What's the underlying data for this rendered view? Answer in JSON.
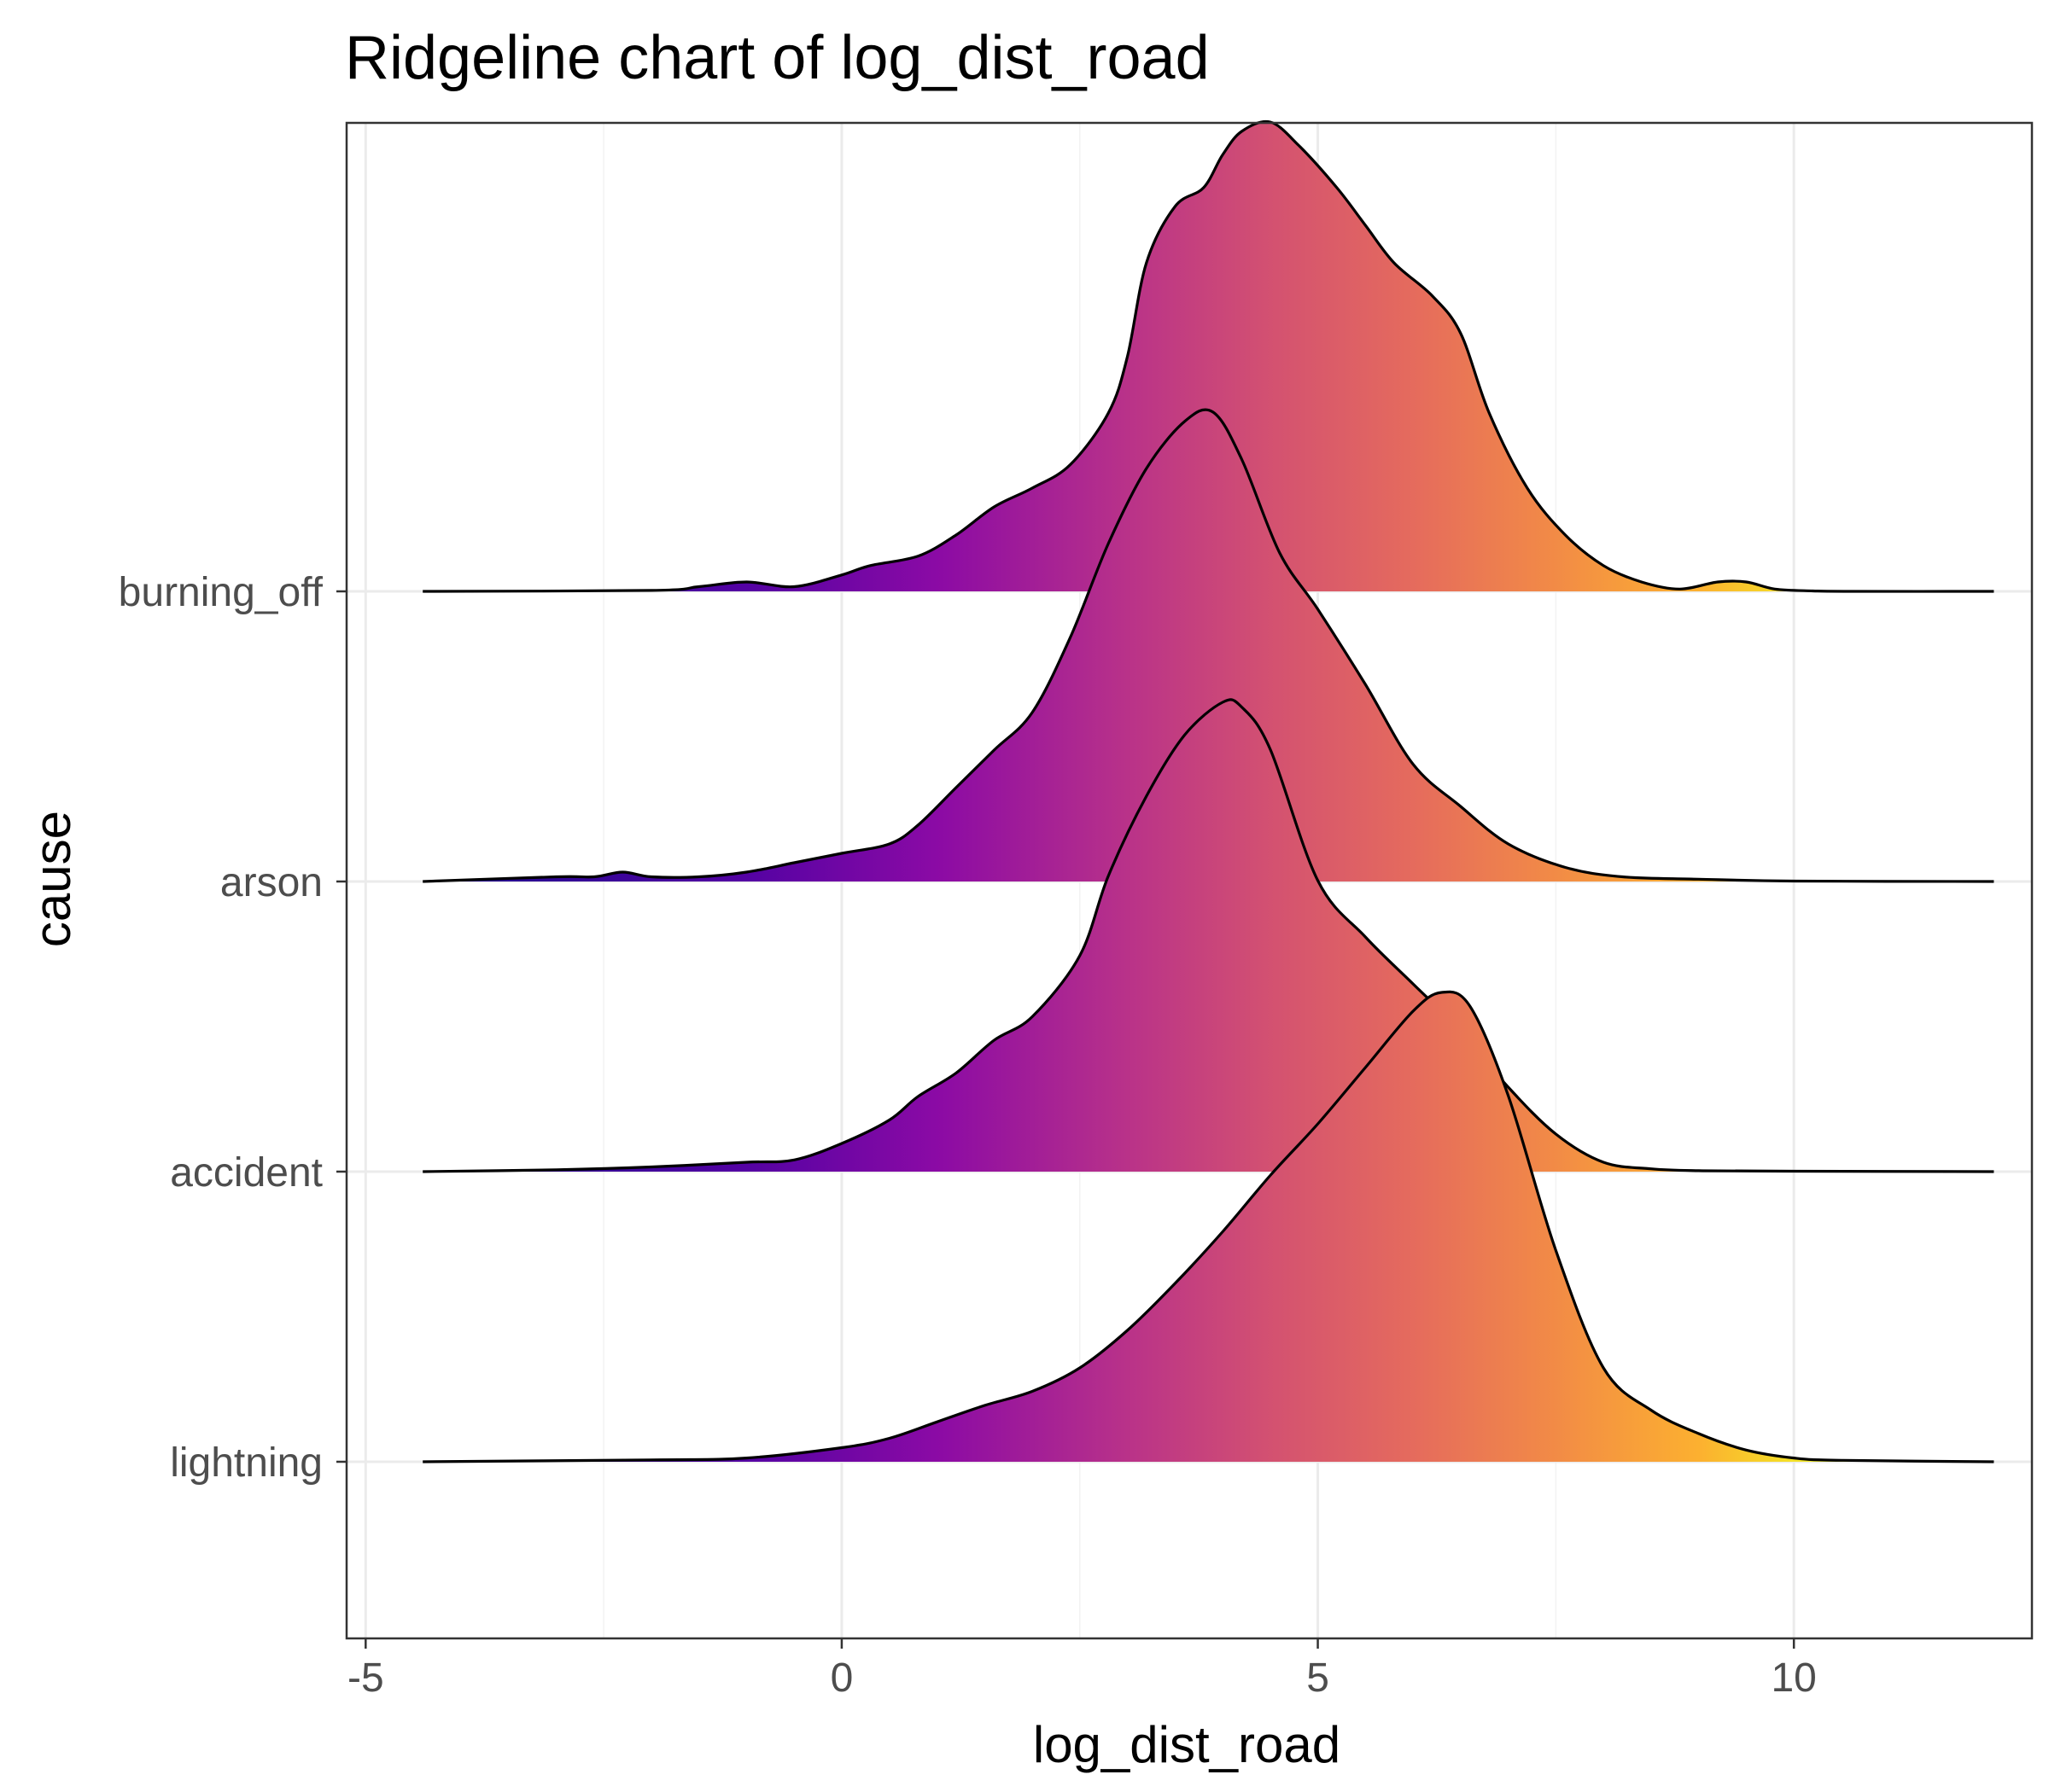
{
  "chart_data": {
    "type": "ridgeline",
    "title": "Ridgeline chart of log_dist_road",
    "xlabel": "log_dist_road",
    "ylabel": "cause",
    "xlim": [
      -5.2,
      12.5
    ],
    "x_ticks": [
      -5,
      0,
      5,
      10
    ],
    "x_tick_labels": [
      "-5",
      "0",
      "5",
      "10"
    ],
    "categories": [
      "burning_off",
      "arson",
      "accident",
      "lightning"
    ],
    "fill_gradient": {
      "by": "x",
      "stops": [
        {
          "x": -5,
          "color": "#0d0887"
        },
        {
          "x": -1,
          "color": "#5402a3"
        },
        {
          "x": 1,
          "color": "#8b0aa5"
        },
        {
          "x": 3,
          "color": "#b93289"
        },
        {
          "x": 4.5,
          "color": "#d35171"
        },
        {
          "x": 6,
          "color": "#e56b5d"
        },
        {
          "x": 7.5,
          "color": "#f28b46"
        },
        {
          "x": 9,
          "color": "#fcb030"
        },
        {
          "x": 10.5,
          "color": "#f0f921"
        }
      ]
    },
    "grid": true,
    "series": [
      {
        "name": "burning_off",
        "x": [
          -4.4,
          -2,
          -1.5,
          -1,
          -0.5,
          0,
          0.3,
          0.8,
          1.2,
          1.6,
          2,
          2.4,
          2.8,
          3,
          3.2,
          3.5,
          3.8,
          4,
          4.2,
          4.5,
          4.8,
          5.2,
          5.5,
          5.8,
          6.2,
          6.5,
          6.8,
          7.2,
          7.6,
          8,
          8.4,
          8.8,
          9.2,
          9.5,
          9.8,
          10.2,
          10.6,
          12.1
        ],
        "y": [
          0,
          0.002,
          0.01,
          0.02,
          0.01,
          0.035,
          0.055,
          0.075,
          0.12,
          0.18,
          0.22,
          0.27,
          0.38,
          0.5,
          0.7,
          0.82,
          0.86,
          0.93,
          0.98,
          1.0,
          0.95,
          0.86,
          0.78,
          0.7,
          0.63,
          0.55,
          0.38,
          0.22,
          0.12,
          0.055,
          0.02,
          0.005,
          0.02,
          0.02,
          0.005,
          0.001,
          0,
          0
        ]
      },
      {
        "name": "arson",
        "x": [
          -4.4,
          -3,
          -2.6,
          -2.3,
          -2,
          -1.5,
          -1,
          -0.5,
          0,
          0.5,
          0.8,
          1.2,
          1.6,
          2,
          2.4,
          2.8,
          3.2,
          3.6,
          3.9,
          4.2,
          4.6,
          5,
          5.5,
          6,
          6.5,
          7,
          7.6,
          8.2,
          9,
          10,
          12.1
        ],
        "y": [
          0,
          0.01,
          0.01,
          0.02,
          0.01,
          0.01,
          0.02,
          0.04,
          0.06,
          0.08,
          0.12,
          0.2,
          0.28,
          0.36,
          0.52,
          0.72,
          0.88,
          0.98,
          1.0,
          0.9,
          0.7,
          0.58,
          0.42,
          0.25,
          0.16,
          0.08,
          0.03,
          0.01,
          0.005,
          0.001,
          0
        ]
      },
      {
        "name": "accident",
        "x": [
          -4.4,
          -3,
          -2,
          -1,
          -0.5,
          0,
          0.5,
          0.8,
          1.2,
          1.6,
          2,
          2.5,
          2.8,
          3.2,
          3.6,
          4,
          4.2,
          4.5,
          5,
          5.5,
          6,
          6.5,
          7,
          7.5,
          8,
          8.5,
          9,
          10,
          12.1
        ],
        "y": [
          0,
          0.004,
          0.01,
          0.02,
          0.025,
          0.06,
          0.11,
          0.16,
          0.21,
          0.28,
          0.33,
          0.46,
          0.63,
          0.8,
          0.93,
          1.0,
          0.99,
          0.9,
          0.62,
          0.5,
          0.4,
          0.3,
          0.18,
          0.08,
          0.02,
          0.006,
          0.002,
          0.001,
          0
        ]
      },
      {
        "name": "lightning",
        "x": [
          -4.4,
          -2,
          -1,
          0,
          0.5,
          1,
          1.5,
          2,
          2.5,
          3,
          3.5,
          4,
          4.5,
          5,
          5.5,
          6,
          6.3,
          6.6,
          7,
          7.5,
          8,
          8.5,
          9,
          9.5,
          10,
          10.5,
          12.1
        ],
        "y": [
          0,
          0.004,
          0.008,
          0.03,
          0.05,
          0.085,
          0.12,
          0.15,
          0.2,
          0.28,
          0.38,
          0.49,
          0.61,
          0.72,
          0.84,
          0.96,
          1.0,
          0.97,
          0.78,
          0.45,
          0.2,
          0.11,
          0.06,
          0.025,
          0.008,
          0.003,
          0
        ]
      }
    ]
  }
}
